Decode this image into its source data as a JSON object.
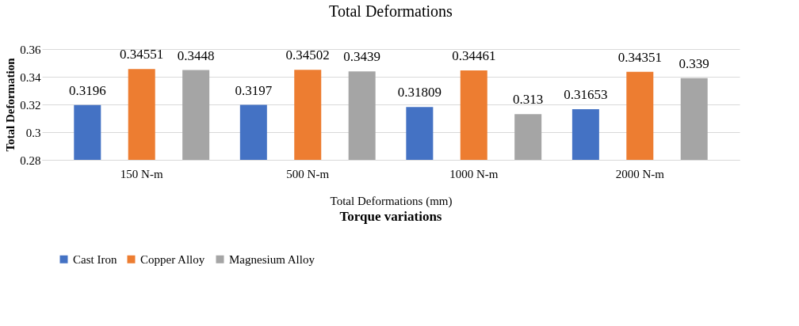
{
  "chart_data": {
    "type": "bar",
    "title": "Total Deformations",
    "ylabel": "Total Deformation",
    "xlabel": "Torque variations",
    "annotations": [
      "Total Deformations (mm)"
    ],
    "categories": [
      "150 N-m",
      "500 N-m",
      "1000 N-m",
      "2000 N-m"
    ],
    "series": [
      {
        "name": "Cast Iron",
        "color": "#4472c4",
        "values": [
          0.3196,
          0.3197,
          0.31809,
          0.31653
        ]
      },
      {
        "name": "Copper Alloy",
        "color": "#ed7d31",
        "values": [
          0.34551,
          0.34502,
          0.34461,
          0.34351
        ]
      },
      {
        "name": "Magnesium Alloy",
        "color": "#a5a5a5",
        "values": [
          0.3448,
          0.3439,
          0.313,
          0.339
        ]
      }
    ],
    "ylim": [
      0.28,
      0.36
    ],
    "yticks": [
      0.28,
      0.3,
      0.32,
      0.34,
      0.36
    ],
    "grid": "y",
    "legend": "bottom",
    "data_labels": true
  }
}
